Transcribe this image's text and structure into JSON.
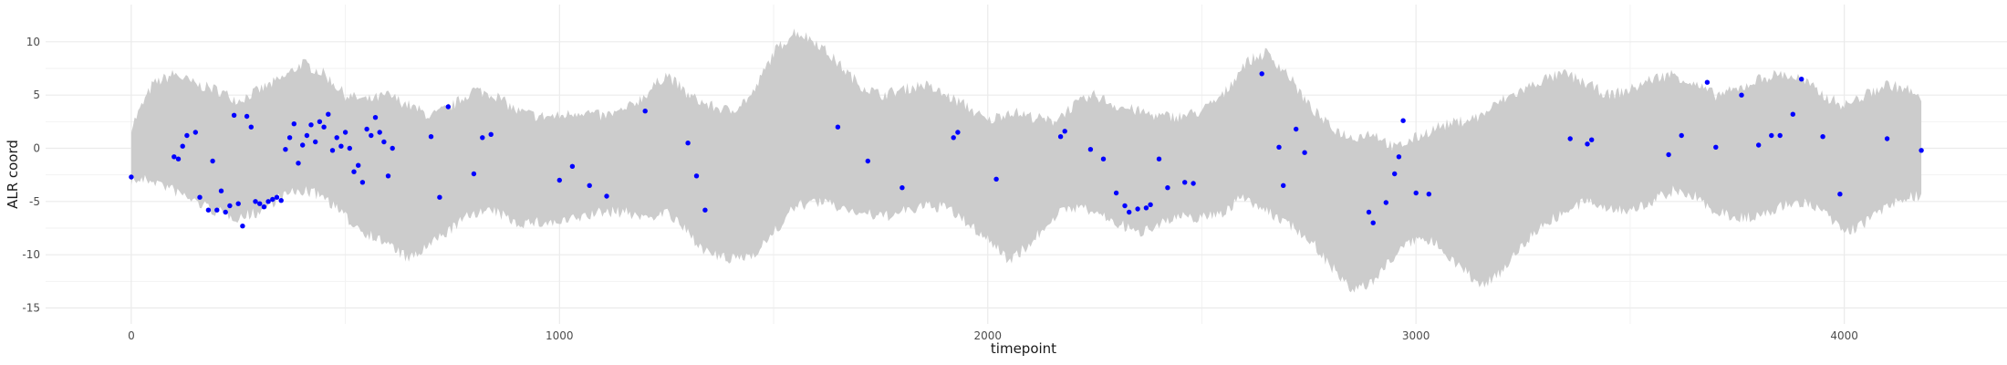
{
  "chart_data": {
    "type": "scatter",
    "title": "",
    "xlabel": "timepoint",
    "ylabel": "ALR coord",
    "xlim": [
      -200,
      4380
    ],
    "ylim": [
      -16.5,
      13.5
    ],
    "x_ticks": [
      0,
      1000,
      2000,
      3000,
      4000
    ],
    "y_ticks": [
      -15,
      -10,
      -5,
      0,
      5,
      10
    ],
    "x_tick_labels": [
      "0",
      "1000",
      "2000",
      "3000",
      "4000"
    ],
    "y_tick_labels": [
      "-15",
      "-10",
      "-5",
      "0",
      "5",
      "10"
    ],
    "grid": true,
    "band": {
      "color": "#cccccc",
      "x": [
        0,
        50,
        100,
        150,
        200,
        250,
        300,
        350,
        400,
        450,
        500,
        550,
        600,
        650,
        700,
        750,
        800,
        850,
        900,
        950,
        1000,
        1050,
        1100,
        1150,
        1200,
        1250,
        1300,
        1350,
        1400,
        1450,
        1500,
        1550,
        1600,
        1650,
        1700,
        1750,
        1800,
        1850,
        1900,
        1950,
        2000,
        2050,
        2100,
        2150,
        2200,
        2250,
        2300,
        2350,
        2400,
        2450,
        2500,
        2550,
        2600,
        2650,
        2700,
        2750,
        2800,
        2850,
        2900,
        2950,
        3000,
        3050,
        3100,
        3150,
        3200,
        3250,
        3300,
        3350,
        3400,
        3450,
        3500,
        3550,
        3600,
        3650,
        3700,
        3750,
        3800,
        3850,
        3900,
        3950,
        4000,
        4050,
        4100,
        4150,
        4180
      ],
      "upper": [
        2.0,
        6.0,
        7.0,
        6.0,
        5.5,
        4.5,
        5.5,
        6.5,
        8.0,
        7.0,
        5.0,
        4.5,
        5.0,
        4.0,
        3.0,
        4.0,
        5.5,
        5.0,
        3.5,
        3.0,
        3.0,
        3.5,
        3.0,
        3.5,
        5.0,
        7.0,
        5.0,
        4.0,
        3.5,
        5.0,
        9.0,
        11.0,
        10.0,
        8.0,
        6.0,
        5.0,
        5.5,
        6.0,
        5.0,
        4.0,
        2.5,
        3.5,
        3.0,
        2.5,
        4.0,
        5.0,
        4.0,
        3.5,
        3.0,
        3.0,
        3.5,
        5.0,
        8.0,
        9.0,
        7.0,
        4.0,
        2.0,
        1.0,
        1.5,
        0.0,
        1.0,
        2.0,
        2.5,
        3.0,
        4.5,
        5.5,
        6.5,
        7.0,
        6.0,
        5.0,
        5.5,
        6.5,
        7.0,
        6.0,
        5.0,
        5.5,
        6.5,
        7.0,
        6.5,
        5.0,
        4.0,
        5.0,
        6.0,
        5.5,
        4.5
      ],
      "lower": [
        -3.0,
        -3.0,
        -4.0,
        -5.0,
        -6.0,
        -6.5,
        -6.0,
        -4.5,
        -4.0,
        -4.5,
        -6.5,
        -8.0,
        -9.0,
        -10.5,
        -9.0,
        -7.5,
        -6.0,
        -6.0,
        -7.0,
        -7.0,
        -7.0,
        -6.5,
        -6.0,
        -6.0,
        -6.5,
        -6.0,
        -8.0,
        -10.0,
        -10.5,
        -10.0,
        -8.0,
        -5.5,
        -5.0,
        -5.5,
        -6.0,
        -6.5,
        -6.0,
        -5.5,
        -5.5,
        -7.0,
        -8.5,
        -10.5,
        -9.0,
        -6.5,
        -5.5,
        -6.0,
        -7.0,
        -8.0,
        -7.0,
        -6.5,
        -6.5,
        -6.0,
        -4.5,
        -6.0,
        -7.0,
        -8.5,
        -11.0,
        -13.5,
        -12.5,
        -10.0,
        -8.5,
        -9.0,
        -11.0,
        -13.0,
        -11.5,
        -9.0,
        -7.0,
        -6.0,
        -5.0,
        -5.5,
        -6.0,
        -5.0,
        -4.0,
        -4.5,
        -6.0,
        -6.5,
        -6.5,
        -5.5,
        -5.0,
        -6.0,
        -8.0,
        -7.0,
        -5.5,
        -4.5,
        -4.5
      ]
    },
    "series": [
      {
        "color": "#0000ff",
        "x": [
          0,
          100,
          110,
          120,
          130,
          150,
          160,
          180,
          190,
          200,
          210,
          220,
          230,
          240,
          250,
          260,
          270,
          280,
          290,
          300,
          310,
          320,
          330,
          340,
          350,
          360,
          370,
          380,
          390,
          400,
          410,
          420,
          430,
          440,
          450,
          460,
          470,
          480,
          490,
          500,
          510,
          520,
          530,
          540,
          550,
          560,
          570,
          580,
          590,
          600,
          610,
          700,
          720,
          740,
          800,
          820,
          840,
          1000,
          1030,
          1070,
          1110,
          1200,
          1300,
          1320,
          1340,
          1650,
          1720,
          1800,
          1920,
          1930,
          2020,
          2170,
          2180,
          2240,
          2270,
          2300,
          2320,
          2330,
          2350,
          2370,
          2380,
          2400,
          2420,
          2460,
          2480,
          2640,
          2680,
          2690,
          2720,
          2740,
          2890,
          2900,
          2930,
          2950,
          2960,
          2970,
          3000,
          3030,
          3360,
          3400,
          3410,
          3590,
          3620,
          3680,
          3700,
          3760,
          3800,
          3830,
          3850,
          3880,
          3900,
          3950,
          3990,
          4100,
          4180
        ],
        "y": [
          -2.7,
          -0.8,
          -1.0,
          0.2,
          1.2,
          1.5,
          -4.6,
          -5.8,
          -1.2,
          -5.8,
          -4.0,
          -6.0,
          -5.4,
          3.1,
          -5.2,
          -7.3,
          3.0,
          2.0,
          -5.0,
          -5.2,
          -5.5,
          -5.0,
          -4.8,
          -4.6,
          -4.9,
          -0.1,
          1.0,
          2.3,
          -1.4,
          0.3,
          1.2,
          2.2,
          0.6,
          2.5,
          2.0,
          3.2,
          -0.2,
          1.0,
          0.2,
          1.5,
          0.0,
          -2.2,
          -1.6,
          -3.2,
          1.8,
          1.2,
          2.9,
          1.5,
          0.6,
          -2.6,
          0.0,
          1.1,
          -4.6,
          3.9,
          -2.4,
          1.0,
          1.3,
          -3.0,
          -1.7,
          -3.5,
          -4.5,
          3.5,
          0.5,
          -2.6,
          -5.8,
          2.0,
          -1.2,
          -3.7,
          1.0,
          1.5,
          -2.9,
          1.1,
          1.6,
          -0.1,
          -1.0,
          -4.2,
          -5.4,
          -6.0,
          -5.7,
          -5.6,
          -5.3,
          -1.0,
          -3.7,
          -3.2,
          -3.3,
          7.0,
          0.1,
          -3.5,
          1.8,
          -0.4,
          -6.0,
          -7.0,
          -5.1,
          -2.4,
          -0.8,
          2.6,
          -4.2,
          -4.3,
          0.9,
          0.4,
          0.8,
          -0.6,
          1.2,
          6.2,
          0.1,
          5.0,
          0.3,
          1.2,
          1.2,
          3.2,
          6.5,
          1.1,
          -4.3,
          0.9,
          -0.2
        ]
      }
    ]
  }
}
